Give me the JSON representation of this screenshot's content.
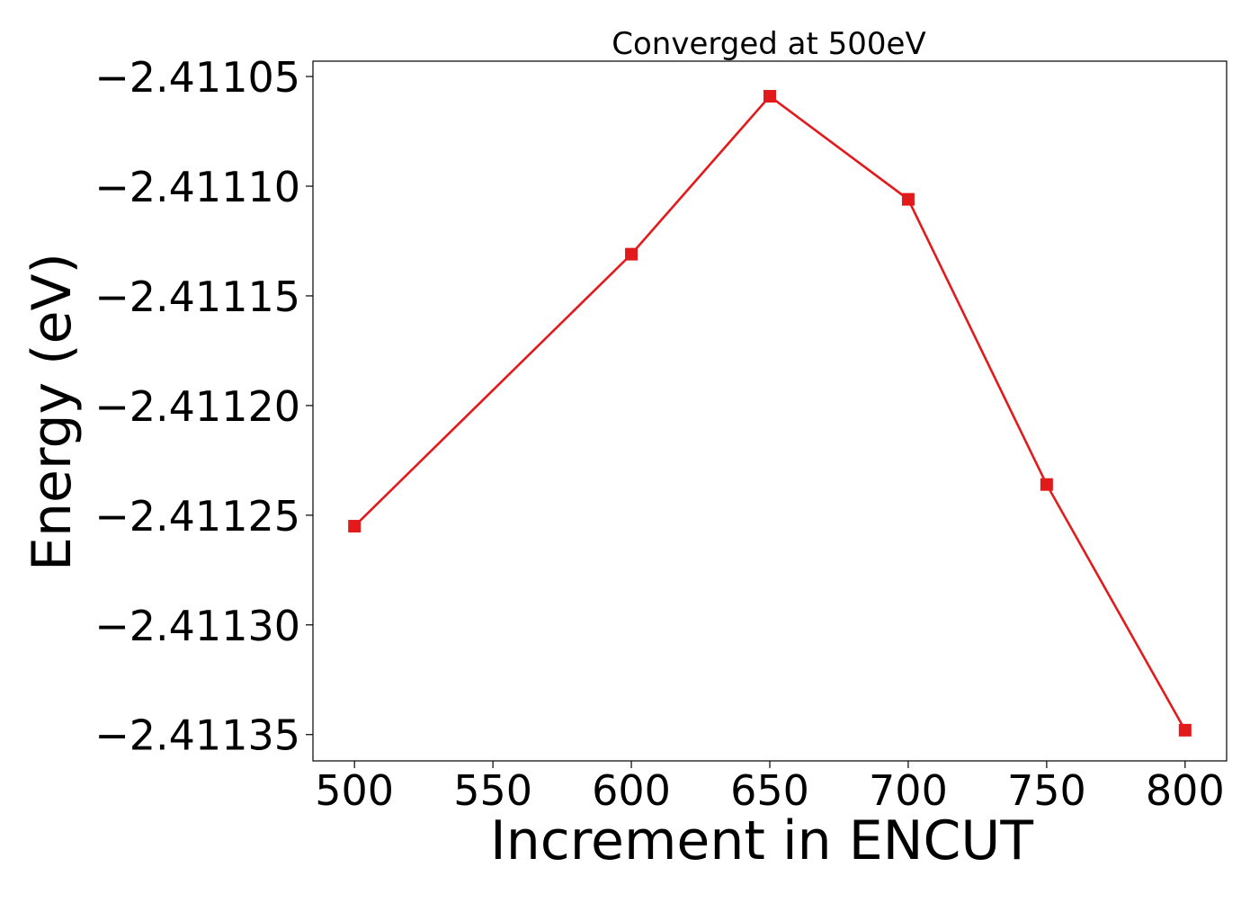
{
  "chart_data": {
    "type": "line",
    "title": "Converged at 500eV",
    "xlabel": "Increment in ENCUT",
    "ylabel": "Energy (eV)",
    "x": [
      500,
      600,
      650,
      700,
      750,
      800
    ],
    "series": [
      {
        "values": [
          -2.411255,
          -2.411131,
          -2.411059,
          -2.411106,
          -2.411236,
          -2.411348
        ],
        "color": "#e31a1c",
        "marker": "square"
      }
    ],
    "xticks": [
      500,
      550,
      600,
      650,
      700,
      750,
      800
    ],
    "xtick_labels": [
      "500",
      "550",
      "600",
      "650",
      "700",
      "750",
      "800"
    ],
    "yticks": [
      -2.41105,
      -2.4111,
      -2.41115,
      -2.4112,
      -2.41125,
      -2.4113,
      -2.41135
    ],
    "ytick_labels": [
      "−2.41105",
      "−2.41110",
      "−2.41115",
      "−2.41120",
      "−2.41125",
      "−2.41130",
      "−2.41135"
    ],
    "xlim": [
      485,
      815
    ],
    "ylim": [
      -2.411362,
      -2.411043
    ],
    "grid": false,
    "legend": "none"
  }
}
